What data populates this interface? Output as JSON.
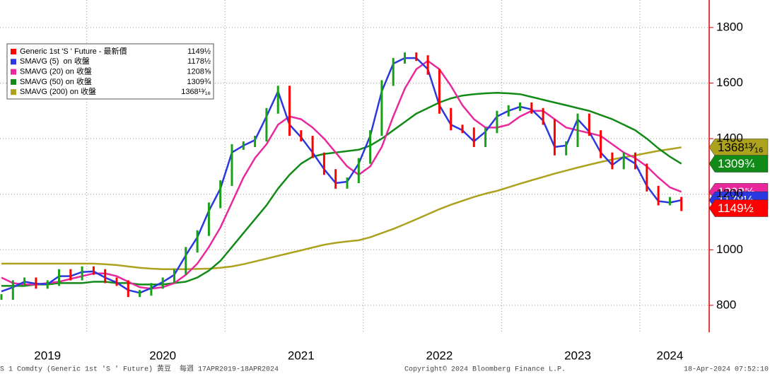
{
  "chart_data": {
    "type": "line",
    "categories": [
      null,
      null,
      null,
      null,
      "2019",
      null,
      null,
      null,
      null,
      null,
      null,
      null,
      null,
      null,
      "2020",
      null,
      null,
      null,
      null,
      null,
      null,
      null,
      null,
      null,
      null,
      null,
      "2021",
      null,
      null,
      null,
      null,
      null,
      null,
      null,
      null,
      null,
      null,
      null,
      "2022",
      null,
      null,
      null,
      null,
      null,
      null,
      null,
      null,
      null,
      null,
      null,
      "2023",
      null,
      null,
      null,
      null,
      null,
      null,
      null,
      "2024",
      null
    ],
    "ylim": [
      703,
      1899
    ],
    "yticks": [
      800,
      1000,
      1200,
      1400,
      1600,
      1800
    ],
    "grid": true,
    "series": [
      {
        "name": "Generic 1st 'S ' Future - 最新價",
        "color": "#ff0000",
        "up_color": "#18a018",
        "style": "bars",
        "value_label": "1149½",
        "values": [
          830,
          880,
          890,
          870,
          880,
          920,
          900,
          930,
          920,
          890,
          880,
          840,
          845,
          870,
          890,
          920,
          1000,
          1060,
          1160,
          1240,
          1370,
          1380,
          1400,
          1500,
          1580,
          1420,
          1400,
          1340,
          1280,
          1230,
          1250,
          1320,
          1420,
          1600,
          1680,
          1700,
          1690,
          1640,
          1500,
          1440,
          1430,
          1380,
          1430,
          1490,
          1510,
          1520,
          1500,
          1460,
          1350,
          1380,
          1480,
          1420,
          1340,
          1300,
          1340,
          1300,
          1220,
          1170,
          1180,
          1149.5
        ]
      },
      {
        "name": "SMAVG (5)  on 收盤",
        "color": "#2a38e0",
        "style": "line",
        "value_label": "1178½",
        "values": [
          850,
          865,
          885,
          878,
          876,
          905,
          905,
          920,
          922,
          900,
          882,
          855,
          845,
          862,
          884,
          910,
          980,
          1045,
          1140,
          1220,
          1350,
          1375,
          1395,
          1480,
          1570,
          1450,
          1405,
          1350,
          1290,
          1240,
          1245,
          1310,
          1410,
          1570,
          1670,
          1690,
          1690,
          1650,
          1520,
          1450,
          1430,
          1390,
          1425,
          1480,
          1500,
          1515,
          1505,
          1465,
          1370,
          1375,
          1470,
          1425,
          1350,
          1305,
          1335,
          1310,
          1230,
          1175,
          1170,
          1178.5
        ]
      },
      {
        "name": "SMAVG (20) on 收盤",
        "color": "#e8289c",
        "style": "line",
        "value_label": "1208⅝",
        "values": [
          900,
          880,
          875,
          875,
          880,
          885,
          895,
          905,
          915,
          915,
          905,
          885,
          865,
          860,
          865,
          880,
          910,
          950,
          1010,
          1080,
          1170,
          1260,
          1330,
          1380,
          1450,
          1480,
          1470,
          1440,
          1400,
          1350,
          1300,
          1270,
          1300,
          1370,
          1480,
          1580,
          1650,
          1680,
          1650,
          1590,
          1520,
          1470,
          1440,
          1440,
          1450,
          1480,
          1500,
          1500,
          1470,
          1440,
          1430,
          1420,
          1410,
          1380,
          1350,
          1330,
          1300,
          1260,
          1225,
          1208.625
        ]
      },
      {
        "name": "SMAVG (50) on 收盤",
        "color": "#128a18",
        "style": "line",
        "value_label": "1309¾",
        "values": [
          870,
          870,
          870,
          875,
          875,
          880,
          880,
          880,
          885,
          885,
          880,
          880,
          875,
          875,
          875,
          880,
          885,
          900,
          925,
          960,
          1010,
          1060,
          1110,
          1160,
          1220,
          1270,
          1310,
          1335,
          1345,
          1350,
          1355,
          1360,
          1375,
          1400,
          1430,
          1460,
          1490,
          1510,
          1530,
          1545,
          1555,
          1560,
          1563,
          1565,
          1563,
          1560,
          1550,
          1540,
          1530,
          1520,
          1510,
          1500,
          1485,
          1470,
          1450,
          1430,
          1400,
          1365,
          1335,
          1309.75
        ]
      },
      {
        "name": "SMAVG (200) on 收盤",
        "color": "#aca21e",
        "style": "line",
        "value_label": "1368¹³⁄₁₆",
        "values": [
          950,
          950,
          950,
          950,
          950,
          950,
          950,
          950,
          950,
          948,
          945,
          940,
          935,
          932,
          930,
          930,
          930,
          931,
          932,
          935,
          940,
          948,
          958,
          968,
          978,
          988,
          998,
          1008,
          1018,
          1025,
          1030,
          1034,
          1045,
          1060,
          1075,
          1092,
          1110,
          1128,
          1146,
          1162,
          1176,
          1190,
          1202,
          1212,
          1225,
          1238,
          1250,
          1262,
          1274,
          1285,
          1296,
          1306,
          1316,
          1325,
          1333,
          1340,
          1348,
          1356,
          1362,
          1368.8125
        ]
      }
    ]
  },
  "footer": [
    "S 1 Comdty (Generic 1st 'S ' Future) 黄豆  每週 17APR2019-18APR2024",
    "Copyright© 2024 Bloomberg Finance L.P.",
    "18-Apr-2024 07:52:10"
  ]
}
